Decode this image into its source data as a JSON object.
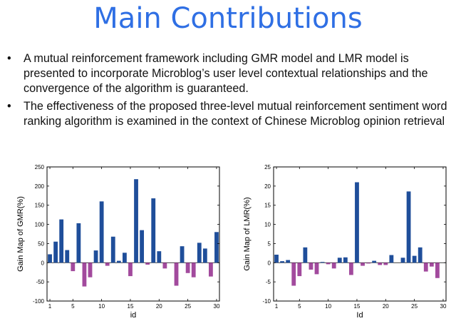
{
  "slide": {
    "title": "Main Contributions",
    "bullet_glyph": "•",
    "bullets": [
      "A mutual reinforcement framework including GMR model and LMR model is presented to incorporate Microblog’s user level contextual relationships and the convergence of the algorithm is guaranteed.",
      "The effectiveness of the proposed three-level mutual reinforcement sentiment word ranking algorithm is examined in the context of Chinese Microblog opinion retrieval"
    ]
  },
  "chart_data": [
    {
      "type": "bar",
      "xlabel": "id",
      "ylabel": "Gain Map of GMR(%)",
      "ylim": [
        -100,
        250
      ],
      "yticks": [
        -100,
        -50,
        0,
        50,
        100,
        150,
        200,
        250
      ],
      "xlim": [
        0.5,
        30.5
      ],
      "xticks": [
        1,
        5,
        10,
        15,
        20,
        25,
        30
      ],
      "grid": false,
      "colors": {
        "positive": "#1f4e9a",
        "negative": "#a24a9d"
      },
      "x": [
        1,
        2,
        3,
        4,
        5,
        6,
        7,
        8,
        9,
        10,
        11,
        12,
        13,
        14,
        15,
        16,
        17,
        18,
        19,
        20,
        21,
        22,
        23,
        24,
        25,
        26,
        27,
        28,
        29,
        30
      ],
      "values": [
        22,
        55,
        113,
        33,
        -22,
        103,
        -62,
        -38,
        32,
        160,
        -8,
        68,
        5,
        26,
        -35,
        218,
        85,
        -5,
        168,
        30,
        -15,
        0,
        -60,
        43,
        -27,
        -38,
        52,
        37,
        -36,
        80
      ]
    },
    {
      "type": "bar",
      "xlabel": "Id",
      "ylabel": "Gain Map of LMR(%)",
      "ylim": [
        -10,
        25
      ],
      "yticks": [
        -10,
        -5,
        0,
        5,
        10,
        15,
        20,
        25
      ],
      "xlim": [
        0.5,
        30.5
      ],
      "xticks": [
        1,
        5,
        10,
        15,
        20,
        25,
        30
      ],
      "grid": false,
      "colors": {
        "positive": "#1f4e9a",
        "negative": "#a24a9d"
      },
      "x": [
        1,
        2,
        3,
        4,
        5,
        6,
        7,
        8,
        9,
        10,
        11,
        12,
        13,
        14,
        15,
        16,
        17,
        18,
        19,
        20,
        21,
        22,
        23,
        24,
        25,
        26,
        27,
        28,
        29,
        30
      ],
      "values": [
        2.1,
        0.4,
        0.7,
        -6.0,
        -3.5,
        4.0,
        -1.8,
        -3.0,
        0.2,
        -0.4,
        -1.5,
        1.3,
        1.4,
        -3.2,
        21.0,
        -0.8,
        -0.2,
        0.5,
        -0.6,
        -0.6,
        2.0,
        0,
        1.3,
        18.6,
        1.8,
        4.0,
        -2.3,
        -1.0,
        -4.0,
        0
      ]
    }
  ]
}
